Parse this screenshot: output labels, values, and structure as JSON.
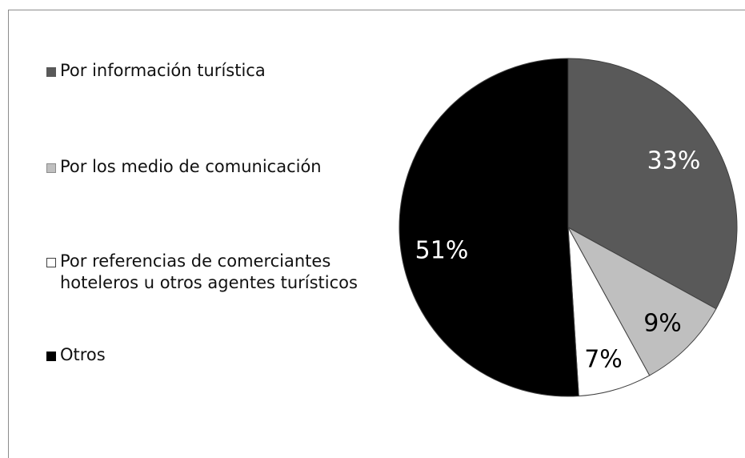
{
  "chart_data": {
    "type": "pie",
    "title": "",
    "series": [
      {
        "name": "Por información turística",
        "value": 33,
        "label": "33%",
        "color": "#595959",
        "label_color": "#ffffff"
      },
      {
        "name": "Por los medio de comunicación",
        "value": 9,
        "label": "9%",
        "color": "#bfbfbf",
        "label_color": "#000000"
      },
      {
        "name": "Por referencias de comerciantes hoteleros u otros agentes turísticos",
        "value": 7,
        "label": "7%",
        "color": "#ffffff",
        "label_color": "#000000"
      },
      {
        "name": "Otros",
        "value": 51,
        "label": "51%",
        "color": "#000000",
        "label_color": "#ffffff"
      }
    ],
    "legend_placement": "left",
    "start_angle": "12 o'clock, clockwise"
  }
}
